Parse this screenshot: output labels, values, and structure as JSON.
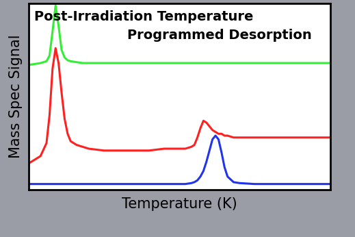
{
  "chart_data": {
    "type": "line",
    "title": "Post-Irradiation Temperature",
    "subtitle": "Programmed Desorption",
    "x_label": "Temperature (K)",
    "y_label": "Mass Spec Signal",
    "xlim": [
      0,
      100
    ],
    "ylim": [
      0,
      100
    ],
    "tick_labels": false,
    "grid": false,
    "x": [
      0,
      2,
      4,
      6,
      7,
      8,
      9,
      10,
      11,
      12,
      13,
      14,
      16,
      18,
      20,
      25,
      30,
      35,
      40,
      45,
      50,
      52,
      54,
      55,
      56,
      57,
      58,
      59,
      60,
      61,
      62,
      63,
      64,
      65,
      66,
      68,
      70,
      75,
      80,
      85,
      90,
      95,
      100
    ],
    "series": [
      {
        "color": "#33ee33",
        "values": [
          67,
          67.5,
          68,
          69,
          72,
          85,
          99,
          88,
          75,
          71,
          69.5,
          69,
          68.5,
          68,
          68,
          68,
          68,
          68,
          68,
          68,
          68,
          68,
          68,
          68,
          68,
          68,
          68,
          68,
          68,
          68,
          68,
          68,
          68,
          68,
          68,
          68,
          68,
          68,
          68,
          68,
          68,
          68,
          68
        ]
      },
      {
        "color": "#ff2020",
        "values": [
          14,
          16,
          18,
          25,
          40,
          65,
          76,
          68,
          52,
          38,
          30,
          26,
          24,
          23,
          22,
          21,
          21,
          21,
          21,
          22,
          22,
          22,
          23,
          24,
          28,
          33,
          37,
          36,
          34,
          32,
          31,
          30,
          30,
          29,
          29,
          28,
          28,
          28,
          28,
          28,
          28,
          28,
          28
        ]
      },
      {
        "color": "#2233ee",
        "values": [
          3,
          3,
          3,
          3,
          3,
          3,
          3,
          3,
          3,
          3,
          3,
          3,
          3,
          3,
          3,
          3,
          3,
          3,
          3,
          3,
          3,
          3,
          3.5,
          4,
          5,
          7,
          10,
          15,
          21,
          27,
          29,
          27,
          20,
          12,
          7,
          4,
          3.5,
          3,
          3,
          3,
          3,
          3,
          3
        ]
      }
    ]
  }
}
